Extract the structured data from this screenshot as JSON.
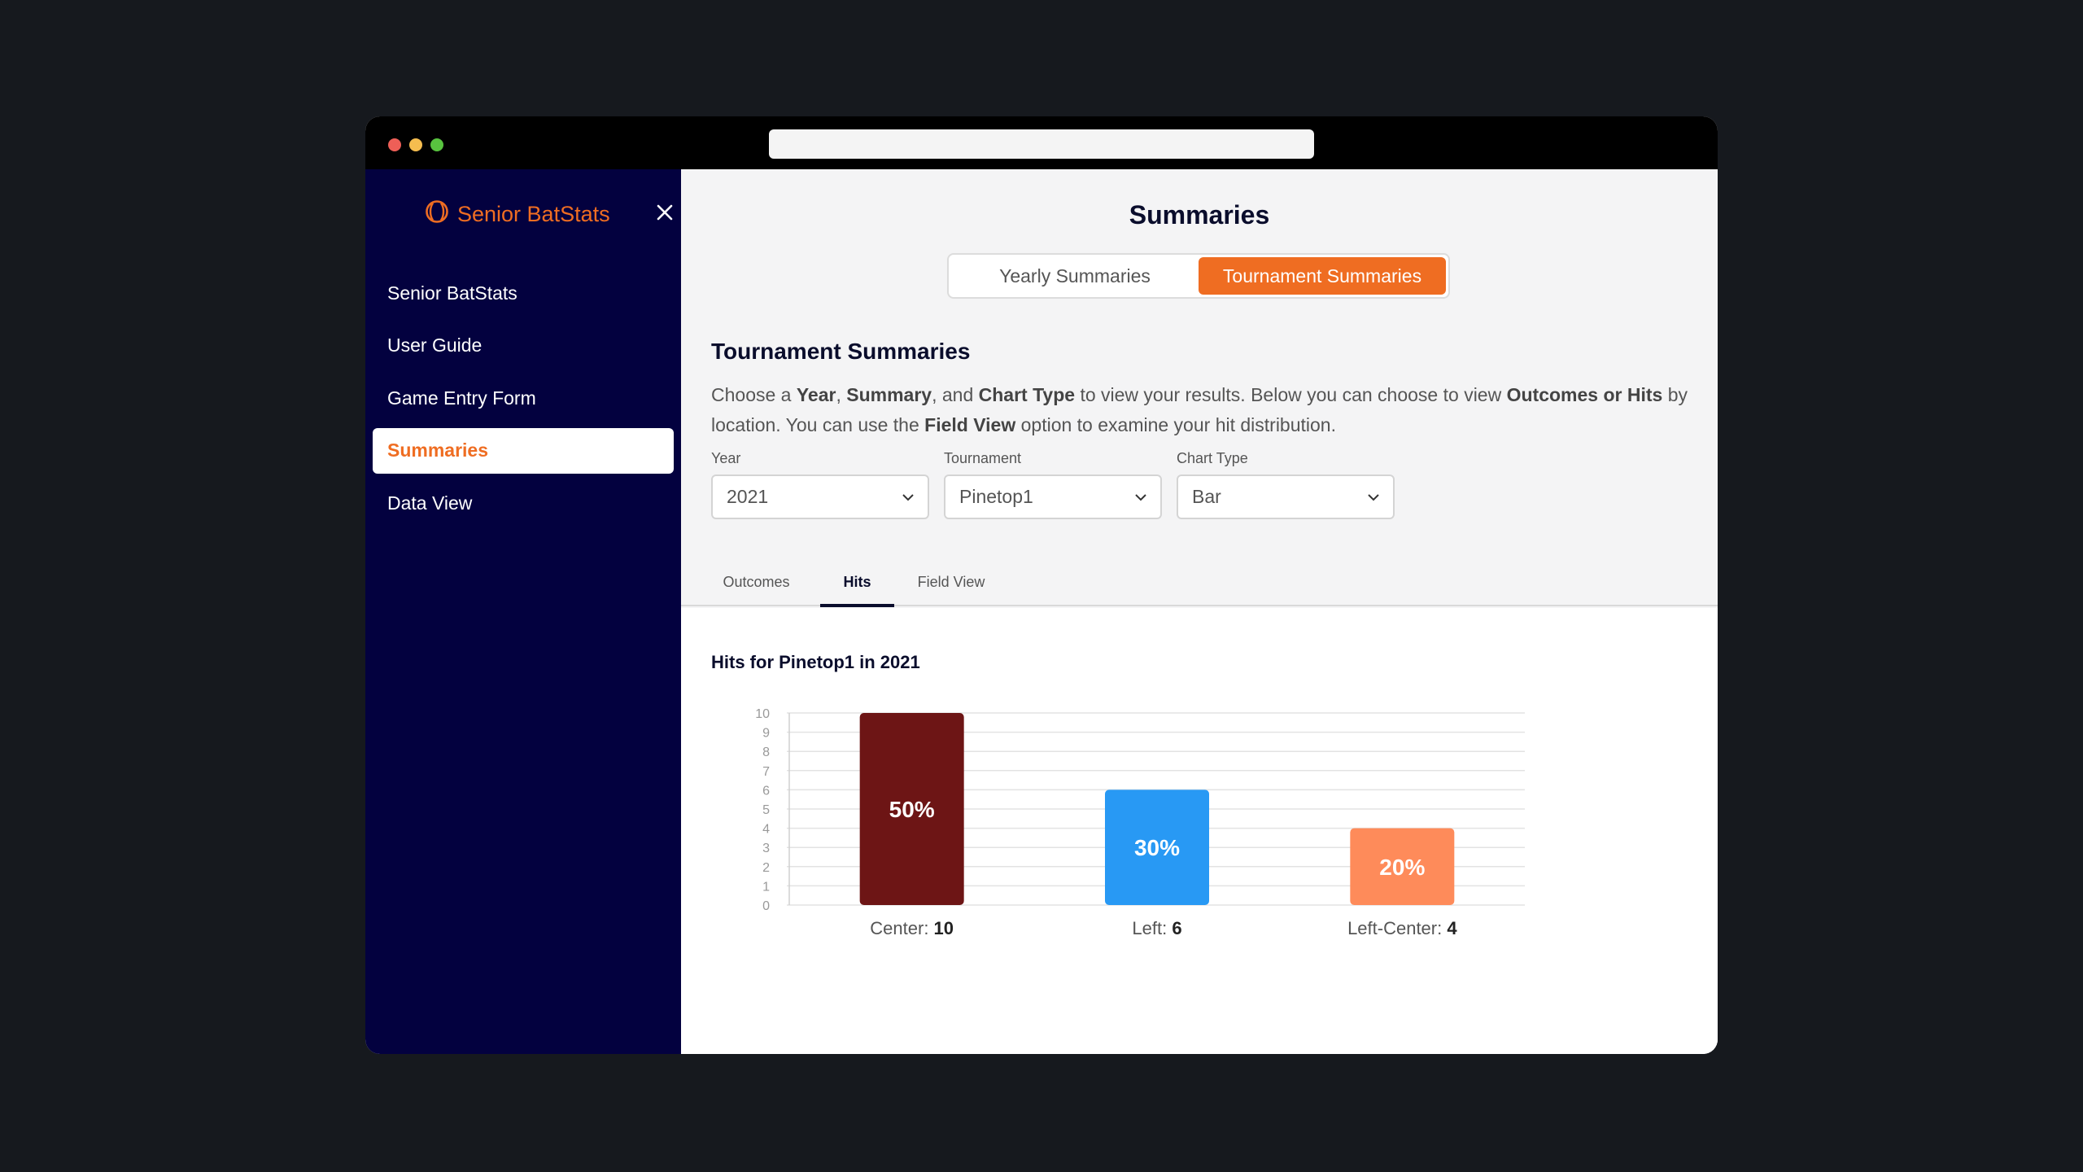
{
  "app": {
    "brand": "Senior BatStats",
    "colors": {
      "accent": "#ef6d22",
      "sidebar": "#03013f",
      "text_dark": "#0a0d2c"
    }
  },
  "sidebar": {
    "items": [
      {
        "label": "Senior BatStats",
        "active": false
      },
      {
        "label": "User Guide",
        "active": false
      },
      {
        "label": "Game Entry Form",
        "active": false
      },
      {
        "label": "Summaries",
        "active": true
      },
      {
        "label": "Data View",
        "active": false
      }
    ]
  },
  "main": {
    "title": "Summaries",
    "segments": [
      {
        "label": "Yearly Summaries",
        "active": false
      },
      {
        "label": "Tournament Summaries",
        "active": true
      }
    ],
    "section_title": "Tournament Summaries",
    "description": [
      {
        "text": "Choose a ",
        "bold": false
      },
      {
        "text": "Year",
        "bold": true
      },
      {
        "text": ", ",
        "bold": false
      },
      {
        "text": "Summary",
        "bold": true
      },
      {
        "text": ", and ",
        "bold": false
      },
      {
        "text": "Chart Type",
        "bold": true
      },
      {
        "text": " to view your results. Below you can choose to view ",
        "bold": false
      },
      {
        "text": "Outcomes or Hits",
        "bold": true
      },
      {
        "text": " by location. You can use the ",
        "bold": false
      },
      {
        "text": "Field View",
        "bold": true
      },
      {
        "text": " option to examine your hit distribution.",
        "bold": false
      }
    ],
    "filters": {
      "year": {
        "label": "Year",
        "value": "2021"
      },
      "tournament": {
        "label": "Tournament",
        "value": "Pinetop1"
      },
      "chart_type": {
        "label": "Chart Type",
        "value": "Bar"
      }
    },
    "tabs": [
      {
        "label": "Outcomes",
        "active": false
      },
      {
        "label": "Hits",
        "active": true
      },
      {
        "label": "Field View",
        "active": false
      }
    ],
    "chart_title": "Hits for Pinetop1  in 2021"
  },
  "chart_data": {
    "type": "bar",
    "categories": [
      "Center",
      "Left",
      "Left-Center"
    ],
    "values": [
      10,
      6,
      4
    ],
    "percent_labels": [
      "50%",
      "30%",
      "20%"
    ],
    "colors": [
      "#6d1515",
      "#2899f4",
      "#fe8b5a"
    ],
    "ylim": [
      0,
      10
    ],
    "yticks": [
      0,
      1,
      2,
      3,
      4,
      5,
      6,
      7,
      8,
      9,
      10
    ],
    "grid": true,
    "legend": "none"
  }
}
